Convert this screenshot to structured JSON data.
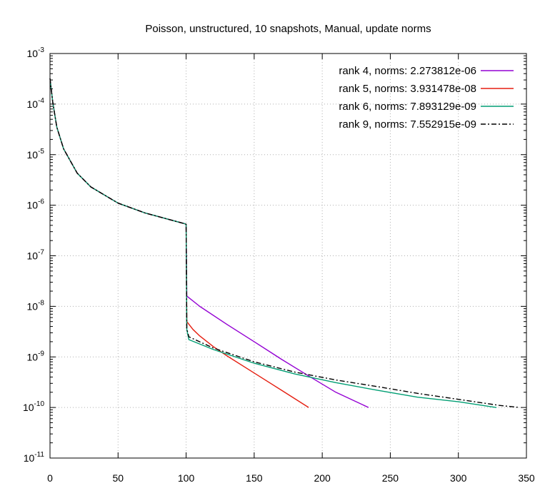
{
  "chart_data": {
    "type": "line",
    "title": "Poisson, unstructured, 10 snapshots, Manual, update norms",
    "xlabel": "",
    "ylabel": "",
    "xlim": [
      0,
      350
    ],
    "ylim": [
      1e-11,
      0.001
    ],
    "y_scale": "log",
    "grid": true,
    "legend_position": "top-right",
    "x_ticks": [
      0,
      50,
      100,
      150,
      200,
      250,
      300,
      350
    ],
    "x_tick_labels": [
      "0",
      "50",
      "100",
      "150",
      "200",
      "250",
      "300",
      "350"
    ],
    "y_ticks": [
      {
        "value": 1e-11,
        "base": "10",
        "exp": "-11"
      },
      {
        "value": 1e-10,
        "base": "10",
        "exp": "-10"
      },
      {
        "value": 1e-09,
        "base": "10",
        "exp": "-9"
      },
      {
        "value": 1e-08,
        "base": "10",
        "exp": "-8"
      },
      {
        "value": 1e-07,
        "base": "10",
        "exp": "-7"
      },
      {
        "value": 1e-06,
        "base": "10",
        "exp": "-6"
      },
      {
        "value": 1e-05,
        "base": "10",
        "exp": "-5"
      },
      {
        "value": 0.0001,
        "base": "10",
        "exp": "-4"
      },
      {
        "value": 0.001,
        "base": "10",
        "exp": "-3"
      }
    ],
    "series": [
      {
        "name": "rank 4, norms: 2.273812e-06",
        "color": "#9400d3",
        "dash": "solid",
        "x": [
          0,
          2,
          5,
          10,
          20,
          30,
          50,
          70,
          90,
          99,
          100,
          100.5,
          110,
          130,
          150,
          170,
          190,
          210,
          234
        ],
        "y": [
          0.00032,
          0.00011,
          3.5e-05,
          1.3e-05,
          4.3e-06,
          2.3e-06,
          1.1e-06,
          7e-07,
          5e-07,
          4.3e-07,
          4.2e-07,
          1.6e-08,
          1e-08,
          4.4e-09,
          2e-09,
          9e-10,
          4.2e-10,
          2e-10,
          1e-10
        ]
      },
      {
        "name": "rank 5, norms: 3.931478e-08",
        "color": "#e51e10",
        "dash": "solid",
        "x": [
          0,
          2,
          5,
          10,
          20,
          30,
          50,
          70,
          90,
          99,
          100,
          100.5,
          105,
          110,
          120,
          130,
          150,
          170,
          190
        ],
        "y": [
          0.00032,
          0.00011,
          3.5e-05,
          1.3e-05,
          4.3e-06,
          2.3e-06,
          1.1e-06,
          7e-07,
          5e-07,
          4.3e-07,
          4.2e-07,
          5e-09,
          3.5e-09,
          2.6e-09,
          1.6e-09,
          1.05e-09,
          4.8e-10,
          2.2e-10,
          1e-10
        ]
      },
      {
        "name": "rank 6, norms: 7.893129e-09",
        "color": "#009e73",
        "dash": "solid",
        "x": [
          0,
          2,
          5,
          10,
          20,
          30,
          50,
          70,
          90,
          99,
          100,
          100.5,
          102,
          120,
          150,
          180,
          210,
          240,
          270,
          300,
          328
        ],
        "y": [
          0.00032,
          0.00011,
          3.5e-05,
          1.3e-05,
          4.3e-06,
          2.3e-06,
          1.1e-06,
          7e-07,
          5e-07,
          4.3e-07,
          4.2e-07,
          3.5e-09,
          2.2e-09,
          1.4e-09,
          7.5e-10,
          4.6e-10,
          3.1e-10,
          2.2e-10,
          1.6e-10,
          1.3e-10,
          1e-10
        ]
      },
      {
        "name": "rank 9, norms: 7.552915e-09",
        "color": "#000000",
        "dash": "dashdot",
        "x": [
          0,
          2,
          5,
          10,
          20,
          30,
          50,
          70,
          90,
          99,
          100,
          100.5,
          102,
          120,
          150,
          180,
          210,
          240,
          270,
          300,
          330,
          345
        ],
        "y": [
          0.00032,
          0.00011,
          3.5e-05,
          1.3e-05,
          4.3e-06,
          2.3e-06,
          1.1e-06,
          7e-07,
          5e-07,
          4.3e-07,
          4.2e-07,
          3.6e-09,
          2.5e-09,
          1.5e-09,
          8e-10,
          5e-10,
          3.5e-10,
          2.6e-10,
          1.9e-10,
          1.45e-10,
          1.1e-10,
          1e-10
        ]
      }
    ]
  }
}
